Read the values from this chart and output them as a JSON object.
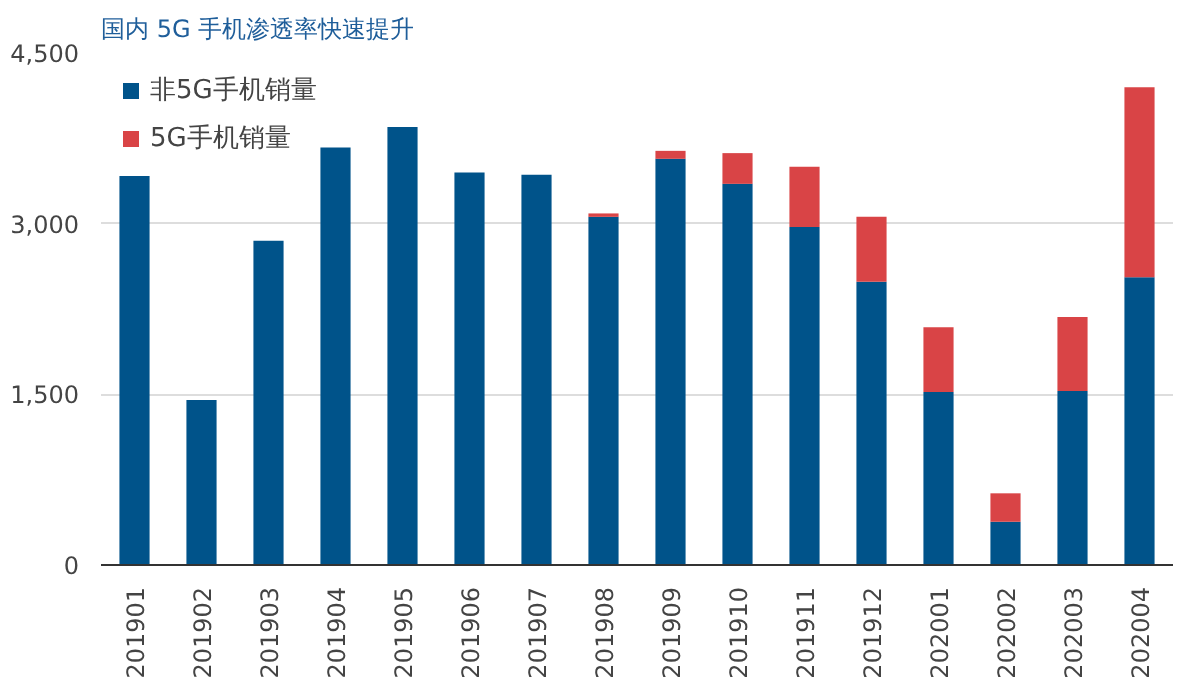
{
  "chart_data": {
    "type": "bar",
    "stacked": true,
    "title": "国内 5G 手机渗透率快速提升",
    "categories": [
      "201901",
      "201902",
      "201903",
      "201904",
      "201905",
      "201906",
      "201907",
      "201908",
      "201909",
      "201910",
      "201911",
      "201912",
      "202001",
      "202002",
      "202003",
      "202004"
    ],
    "series": [
      {
        "name": "非5G手机销量",
        "color": "#00538a",
        "values": [
          3420,
          1450,
          2850,
          3670,
          3850,
          3450,
          3430,
          3060,
          3570,
          3350,
          2970,
          2490,
          1520,
          380,
          1530,
          2530
        ]
      },
      {
        "name": "5G手机销量",
        "color": "#d94446",
        "values": [
          null,
          null,
          null,
          null,
          null,
          null,
          null,
          30,
          70,
          270,
          530,
          570,
          570,
          250,
          650,
          1670
        ]
      }
    ],
    "ylim": [
      0,
      4500
    ],
    "yticks": [
      {
        "value": 0,
        "label": "0"
      },
      {
        "value": 1500,
        "label": "1,500"
      },
      {
        "value": 3000,
        "label": "3,000"
      },
      {
        "value": 4500,
        "label": "4,500"
      }
    ],
    "grid": "y",
    "legend": "top left"
  }
}
